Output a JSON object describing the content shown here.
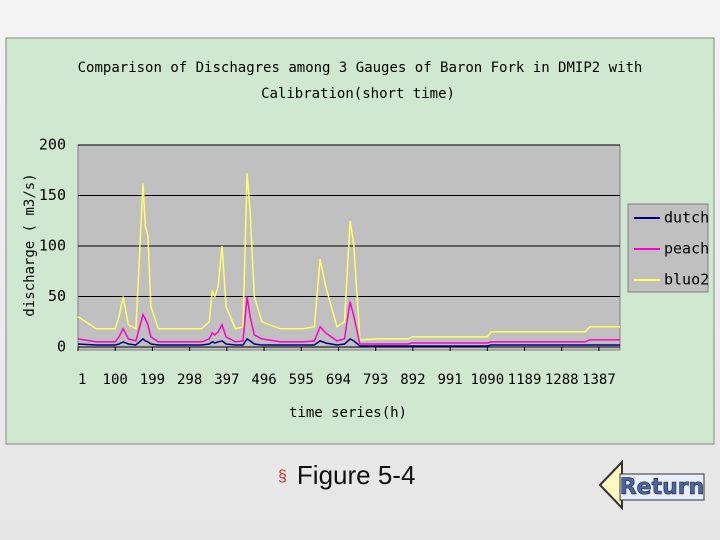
{
  "chart_data": {
    "type": "line",
    "title": [
      "Comparison of Dischagres among 3 Gauges of Baron Fork in DMIP2 with",
      "Calibration(short time)"
    ],
    "x_label": "time series(h)",
    "y_label": "discharge ( m3/s)",
    "x": [
      1,
      50,
      100,
      110,
      121,
      135,
      155,
      174,
      180,
      187,
      195,
      215,
      260,
      330,
      350,
      358,
      365,
      374,
      384,
      395,
      420,
      440,
      451,
      459,
      470,
      490,
      540,
      600,
      630,
      645,
      660,
      690,
      710,
      725,
      735,
      751,
      800,
      880,
      890,
      1000,
      1090,
      1100,
      1200,
      1350,
      1363,
      1443
    ],
    "series": [
      {
        "name": "dutch",
        "color": "#000080",
        "values": [
          3,
          2,
          2,
          3,
          5,
          3,
          2,
          8,
          6,
          5,
          3,
          2,
          2,
          2,
          3,
          5,
          4,
          5,
          6,
          3,
          2,
          2,
          8,
          6,
          3,
          2,
          2,
          2,
          2,
          6,
          4,
          2,
          3,
          8,
          6,
          1,
          1,
          1,
          1,
          1,
          1,
          2,
          2,
          2,
          2,
          2
        ]
      },
      {
        "name": "peach",
        "color": "#ff00cc",
        "values": [
          8,
          5,
          5,
          10,
          18,
          8,
          6,
          32,
          28,
          22,
          10,
          5,
          5,
          5,
          8,
          14,
          12,
          15,
          22,
          10,
          5,
          6,
          50,
          30,
          12,
          8,
          5,
          5,
          6,
          20,
          14,
          6,
          8,
          45,
          30,
          3,
          3,
          3,
          4,
          4,
          4,
          5,
          5,
          5,
          7,
          7
        ]
      },
      {
        "name": "bluo2",
        "color": "#ffff66",
        "values": [
          30,
          18,
          18,
          30,
          50,
          22,
          18,
          162,
          120,
          110,
          40,
          18,
          18,
          18,
          25,
          55,
          50,
          60,
          100,
          40,
          18,
          20,
          172,
          135,
          50,
          25,
          18,
          18,
          20,
          87,
          60,
          20,
          25,
          125,
          100,
          7,
          8,
          8,
          10,
          10,
          10,
          15,
          15,
          15,
          20,
          20
        ]
      }
    ],
    "xlim": [
      1,
      1443
    ],
    "xticks": [
      1,
      100,
      199,
      298,
      397,
      496,
      595,
      694,
      793,
      892,
      991,
      1090,
      1189,
      1288,
      1387
    ],
    "ylim": [
      0,
      200
    ],
    "yticks": [
      0,
      50,
      100,
      150,
      200
    ],
    "grid": true,
    "legend": "right"
  },
  "slide": {
    "caption": "Figure 5-4",
    "button": "Return"
  }
}
